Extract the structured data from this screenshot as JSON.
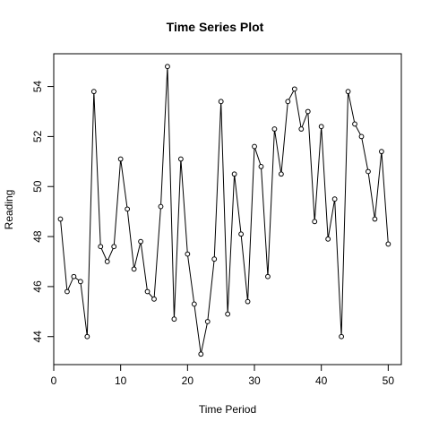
{
  "chart_data": {
    "type": "line",
    "title": "Time Series Plot",
    "xlabel": "Time Period",
    "ylabel": "Reading",
    "xlim": [
      0,
      51.96
    ],
    "ylim": [
      42.88,
      55.31
    ],
    "xticks": [
      0,
      10,
      20,
      30,
      40,
      50
    ],
    "yticks": [
      44,
      46,
      48,
      50,
      52,
      54
    ],
    "grid": false,
    "series": [
      {
        "x": [
          1,
          2,
          3,
          4,
          5,
          6,
          7,
          8,
          9,
          10,
          11,
          12,
          13,
          14,
          15,
          16,
          17,
          18,
          19,
          20,
          21,
          22,
          23,
          24,
          25,
          26,
          27,
          28,
          29,
          30,
          31,
          32,
          33,
          34,
          35,
          36,
          37,
          38,
          39,
          40,
          41,
          42,
          43,
          44,
          45,
          46,
          47,
          48,
          49,
          50
        ],
        "values": [
          48.7,
          45.8,
          46.4,
          46.2,
          44.0,
          53.8,
          47.6,
          47.0,
          47.6,
          51.1,
          49.1,
          46.7,
          47.8,
          45.8,
          45.5,
          49.2,
          54.8,
          44.7,
          51.1,
          47.3,
          45.3,
          43.3,
          44.6,
          47.1,
          53.4,
          44.9,
          50.5,
          48.1,
          45.4,
          51.6,
          50.8,
          46.4,
          52.3,
          50.5,
          53.4,
          53.9,
          52.3,
          53.0,
          48.6,
          52.4,
          47.9,
          49.5,
          44.0,
          53.8,
          52.5,
          52.0,
          50.6,
          48.7,
          51.4,
          47.7
        ]
      }
    ]
  }
}
